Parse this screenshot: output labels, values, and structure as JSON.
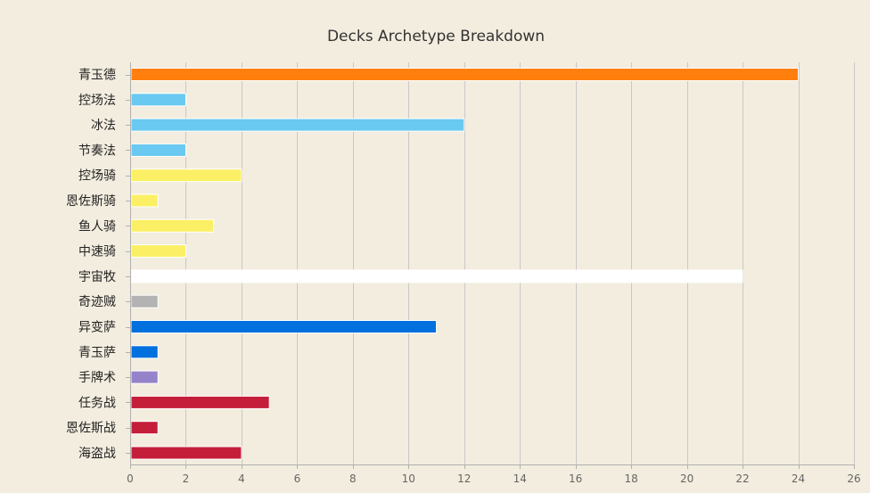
{
  "chart_data": {
    "type": "bar",
    "orientation": "horizontal",
    "title": "Decks Archetype Breakdown",
    "xlabel": "",
    "ylabel": "",
    "grid": true,
    "legend": "none",
    "xlim": [
      0,
      26
    ],
    "ticks": [
      0,
      2,
      4,
      6,
      8,
      10,
      12,
      14,
      16,
      18,
      20,
      22,
      24,
      26
    ],
    "categories": [
      "青玉德",
      "控场法",
      "冰法",
      "节奏法",
      "控场骑",
      "恩佐斯骑",
      "鱼人骑",
      "中速骑",
      "宇宙牧",
      "奇迹贼",
      "异变萨",
      "青玉萨",
      "手牌术",
      "任务战",
      "恩佐斯战",
      "海盗战"
    ],
    "values": [
      24,
      2,
      12,
      2,
      4,
      1,
      3,
      2,
      22,
      1,
      11,
      1,
      1,
      5,
      1,
      4
    ],
    "colors": [
      "#ff7f0e",
      "#69c9f0",
      "#69c9f0",
      "#69c9f0",
      "#fbf065",
      "#fbf065",
      "#fbf065",
      "#fbf065",
      "#ffffff",
      "#b3b3b3",
      "#0070de",
      "#0070de",
      "#9682c8",
      "#c41e3a",
      "#c41e3a",
      "#c41e3a"
    ]
  }
}
